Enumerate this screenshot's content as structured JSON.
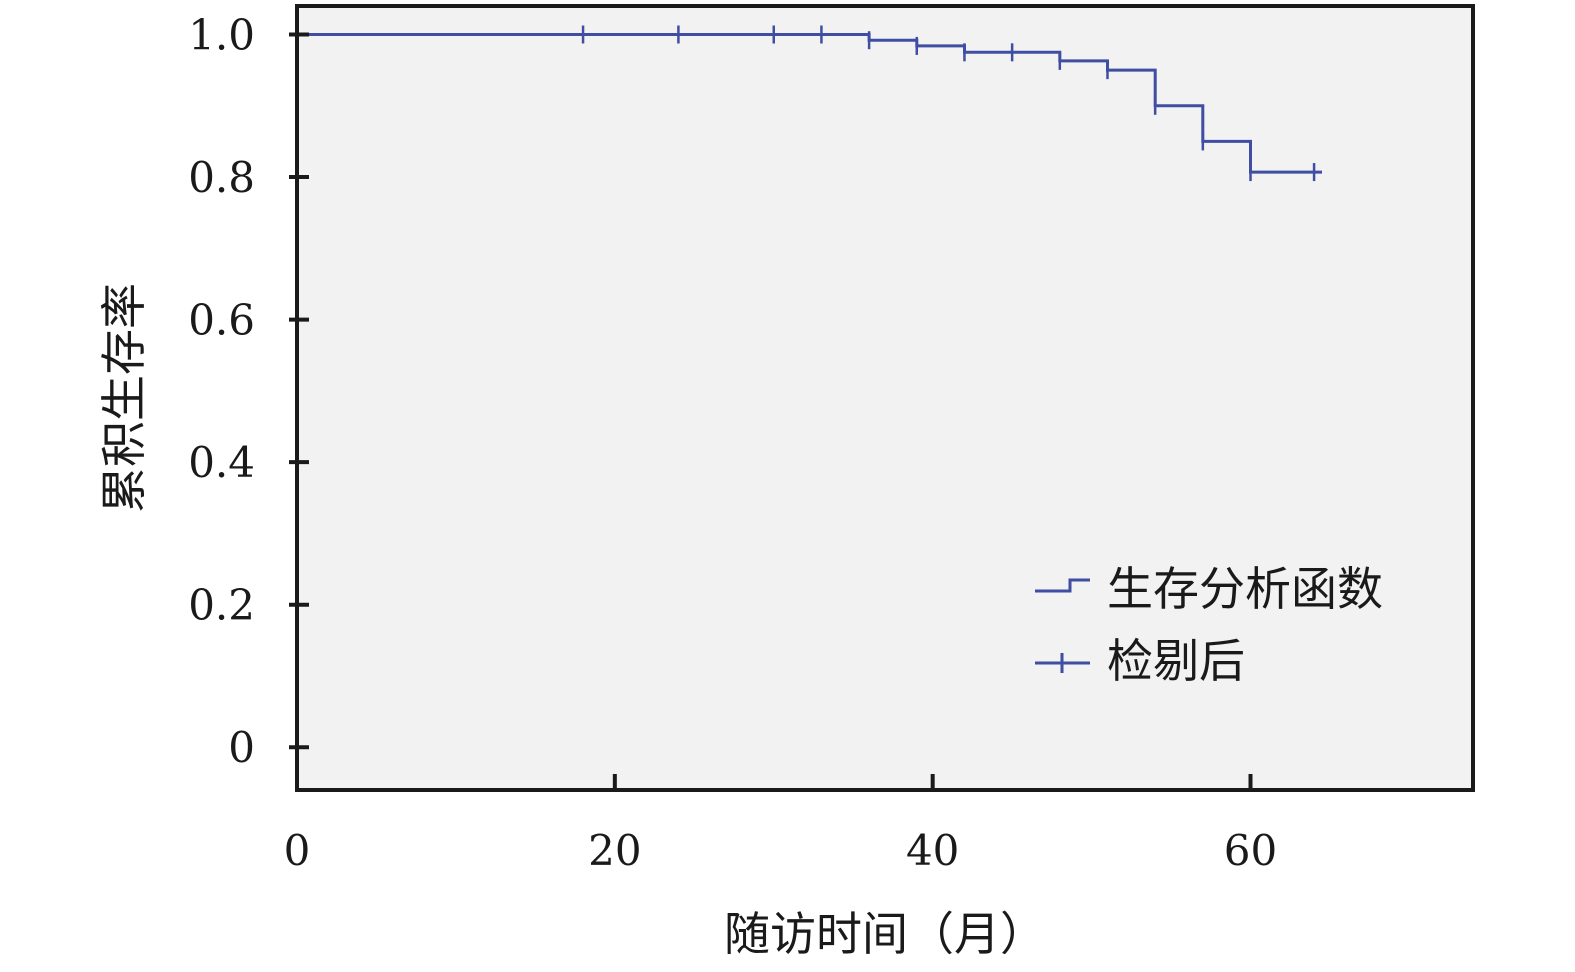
{
  "chart_data": {
    "type": "line",
    "subtype": "kaplan-meier",
    "title": "",
    "xlabel": "随访时间（月）",
    "ylabel": "累积生存率",
    "xlim": [
      0,
      74
    ],
    "ylim": [
      -0.06,
      1.04
    ],
    "xticks": [
      0,
      20,
      40,
      60
    ],
    "xtick_labels": [
      "0",
      "20",
      "40",
      "60"
    ],
    "yticks": [
      0,
      0.2,
      0.4,
      0.6,
      0.8,
      1.0
    ],
    "ytick_labels": [
      "0",
      "0.2",
      "0.4",
      "0.6",
      "0.8",
      "1.0"
    ],
    "grid": false,
    "background": "#f2f2f2",
    "line_color": "#3f4ea3",
    "legend_position": "bottom-right",
    "series": [
      {
        "name": "生存分析函数",
        "marker": "step",
        "x": [
          0,
          36,
          39,
          42,
          48,
          51,
          54,
          57,
          60,
          64.5
        ],
        "y": [
          1.0,
          0.992,
          0.984,
          0.975,
          0.963,
          0.95,
          0.9,
          0.85,
          0.807,
          0.807
        ]
      },
      {
        "name": "检剔后",
        "marker": "plus",
        "x": [
          18,
          24,
          30,
          33,
          36,
          39,
          42,
          45,
          48,
          51,
          54,
          57,
          60,
          64
        ],
        "y": [
          1.0,
          1.0,
          1.0,
          1.0,
          0.992,
          0.984,
          0.975,
          0.975,
          0.963,
          0.95,
          0.9,
          0.85,
          0.807,
          0.807
        ]
      }
    ]
  }
}
